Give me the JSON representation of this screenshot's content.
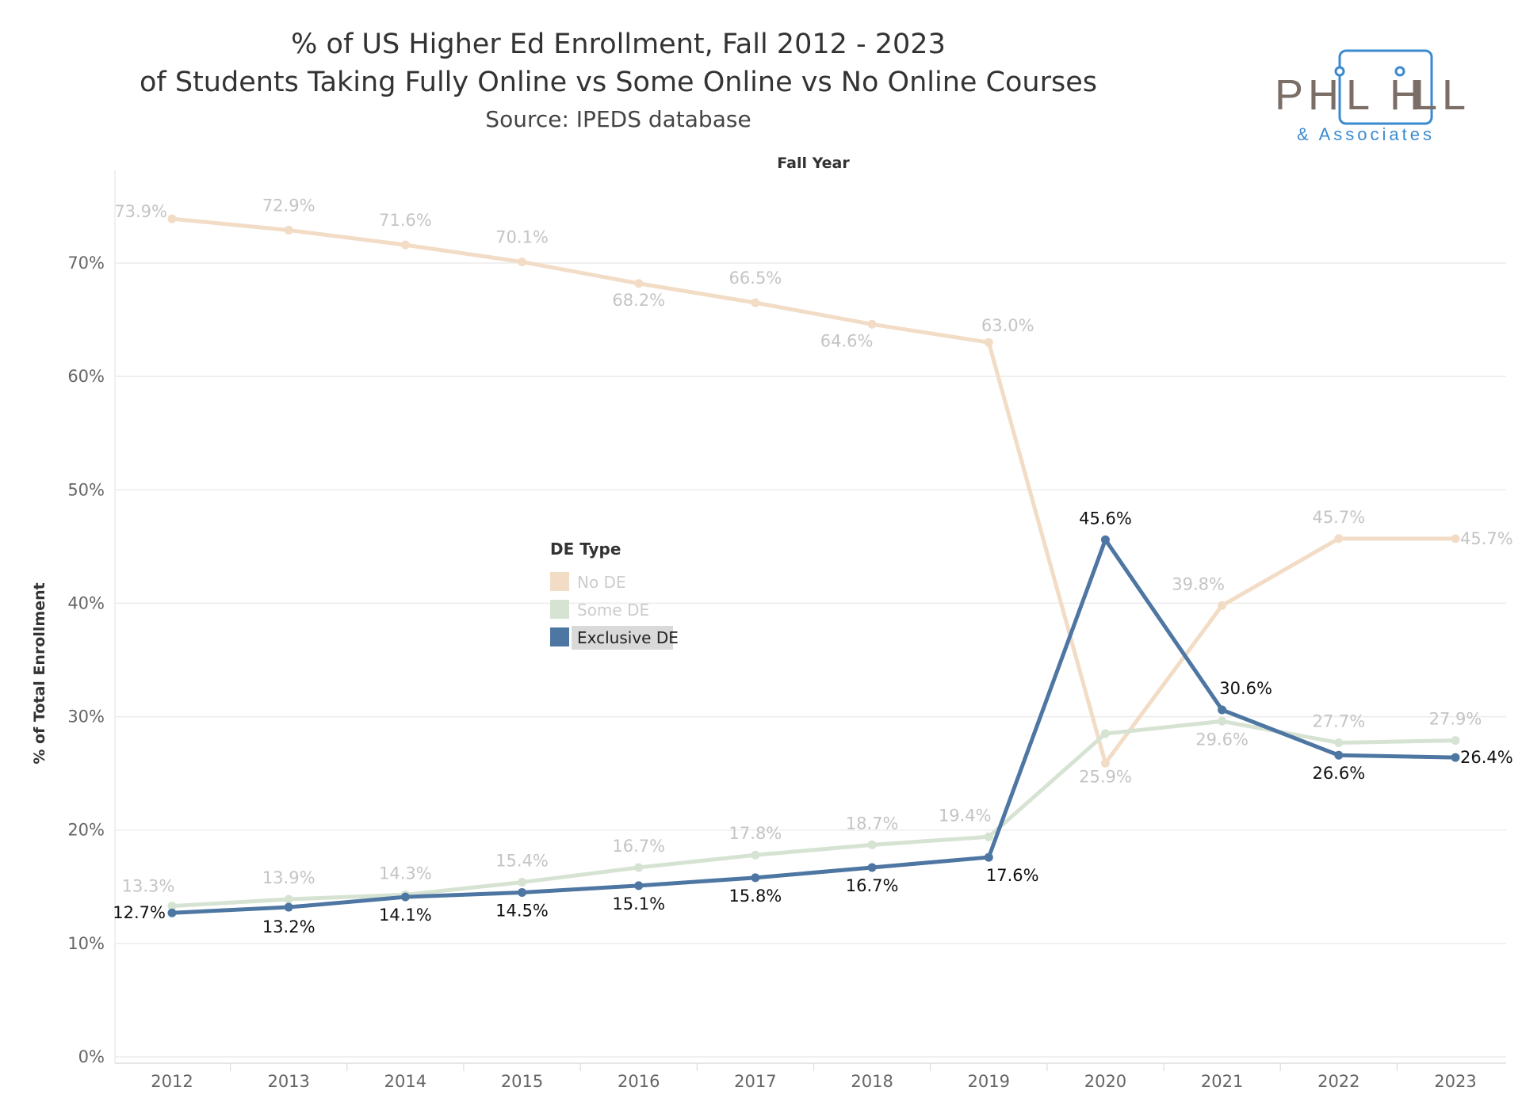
{
  "header": {
    "title": "% of US Higher Ed Enrollment, Fall 2012 - 2023",
    "subtitle": "of Students Taking Fully Online vs Some Online vs No Online Courses",
    "source": "Source: IPEDS database"
  },
  "logo": {
    "name_part1": "PH",
    "name_part2": "L H",
    "name_part3": "LL",
    "tagline": "& Associates",
    "color_text": "#7a6e66",
    "color_accent": "#3a8ad0"
  },
  "chart_data": {
    "type": "line",
    "x_title": "Fall Year",
    "y_title": "% of Total Enrollment",
    "x": [
      "2012",
      "2013",
      "2014",
      "2015",
      "2016",
      "2017",
      "2018",
      "2019",
      "2020",
      "2021",
      "2022",
      "2023"
    ],
    "ylim": [
      0,
      77
    ],
    "y_ticks": [
      "0%",
      "10%",
      "20%",
      "30%",
      "40%",
      "50%",
      "60%",
      "70%"
    ],
    "grid": true,
    "legend_title": "DE Type",
    "legend_position": "center-left",
    "series": [
      {
        "name": "No DE",
        "color": "#f2dcc6",
        "label_style": "light",
        "values": [
          73.9,
          72.9,
          71.6,
          70.1,
          68.2,
          66.5,
          64.6,
          63.0,
          25.9,
          39.8,
          45.7,
          45.7
        ],
        "labels": [
          "73.9%",
          "72.9%",
          "71.6%",
          "70.1%",
          "68.2%",
          "66.5%",
          "64.6%",
          "63.0%",
          "25.9%",
          "39.8%",
          "45.7%",
          "45.7%"
        ]
      },
      {
        "name": "Some DE",
        "color": "#d6e3d3",
        "label_style": "light",
        "values": [
          13.3,
          13.9,
          14.3,
          15.4,
          16.7,
          17.8,
          18.7,
          19.4,
          28.5,
          29.6,
          27.7,
          27.9
        ],
        "labels": [
          "13.3%",
          "13.9%",
          "14.3%",
          "15.4%",
          "16.7%",
          "17.8%",
          "18.7%",
          "19.4%",
          "",
          "29.6%",
          "27.7%",
          "27.9%"
        ]
      },
      {
        "name": "Exclusive DE",
        "color": "#4e76a2",
        "label_style": "dark",
        "values": [
          12.7,
          13.2,
          14.1,
          14.5,
          15.1,
          15.8,
          16.7,
          17.6,
          45.6,
          30.6,
          26.6,
          26.4
        ],
        "labels": [
          "12.7%",
          "13.2%",
          "14.1%",
          "14.5%",
          "15.1%",
          "15.8%",
          "16.7%",
          "17.6%",
          "45.6%",
          "30.6%",
          "26.6%",
          "26.4%"
        ]
      }
    ]
  }
}
